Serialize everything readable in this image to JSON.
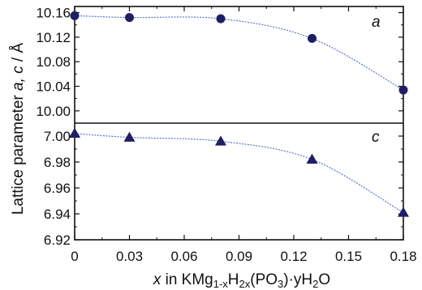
{
  "chart_data": {
    "type": "scatter",
    "x_values": [
      0,
      0.03,
      0.08,
      0.13,
      0.18
    ],
    "x_ticks": [
      "0",
      "0.03",
      "0.06",
      "0.09",
      "0.12",
      "0.15",
      "0.18"
    ],
    "xlim": [
      0,
      0.18
    ],
    "xlabel_parts": [
      "x",
      " in KMg",
      "1-x",
      "H",
      "2x",
      "(PO",
      "3",
      ")·yH",
      "2",
      "O"
    ],
    "ylabel_parts": [
      "Lattice parameter  ",
      "a, c",
      " / Å"
    ],
    "panels": [
      {
        "tag": "a",
        "marker": "circle",
        "ylim": [
          9.98,
          10.17
        ],
        "y_ticks": [
          "10.16",
          "10.12",
          "10.08",
          "10.04",
          "10.00"
        ],
        "y_values": [
          10.155,
          10.152,
          10.15,
          10.118,
          10.034
        ]
      },
      {
        "tag": "c",
        "marker": "triangle",
        "ylim": [
          6.92,
          7.01
        ],
        "y_ticks": [
          "7.00",
          "6.98",
          "6.96",
          "6.94",
          "6.92"
        ],
        "y_values": [
          7.002,
          6.999,
          6.996,
          6.982,
          6.941
        ]
      }
    ],
    "marker_color": "#1f1d63",
    "fit_line_color": "#5577cc",
    "grid": false
  }
}
